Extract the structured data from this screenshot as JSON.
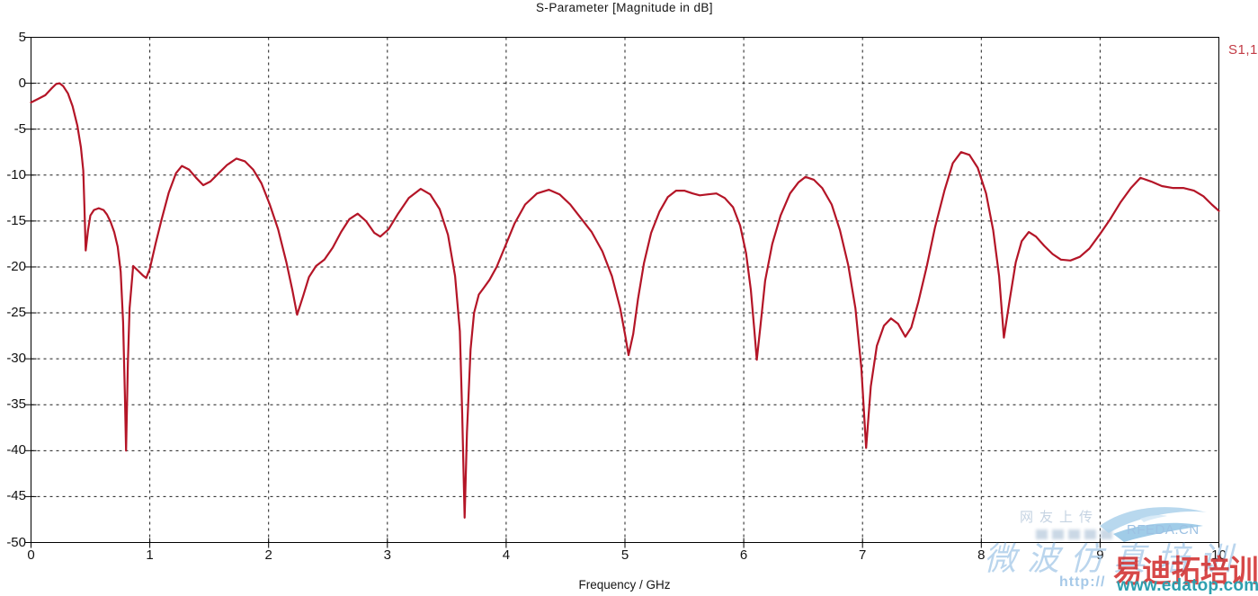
{
  "title": "S-Parameter [Magnitude in dB]",
  "legend": {
    "label": "S1,1",
    "color": "#c23a44"
  },
  "axes": {
    "x": {
      "label": "Frequency / GHz",
      "min": 0,
      "max": 10,
      "ticks": [
        0,
        1,
        2,
        3,
        4,
        5,
        6,
        7,
        8,
        9,
        10
      ]
    },
    "y": {
      "min": -50,
      "max": 5,
      "ticks": [
        5,
        0,
        -5,
        -10,
        -15,
        -20,
        -25,
        -30,
        -35,
        -40,
        -45,
        -50
      ]
    }
  },
  "chart_data": {
    "type": "line",
    "title": "S-Parameter [Magnitude in dB]",
    "xlabel": "Frequency / GHz",
    "ylabel": "",
    "xlim": [
      0,
      10
    ],
    "ylim": [
      -50,
      5
    ],
    "grid": true,
    "grid_style": "dashed",
    "legend_position": "top-right-outside",
    "series": [
      {
        "name": "S1,1",
        "color": "#b41527",
        "points": [
          [
            0.0,
            -2.1
          ],
          [
            0.06,
            -1.7
          ],
          [
            0.12,
            -1.3
          ],
          [
            0.17,
            -0.6
          ],
          [
            0.21,
            -0.1
          ],
          [
            0.24,
            0.0
          ],
          [
            0.27,
            -0.3
          ],
          [
            0.31,
            -1.1
          ],
          [
            0.35,
            -2.5
          ],
          [
            0.39,
            -4.6
          ],
          [
            0.42,
            -7.0
          ],
          [
            0.44,
            -9.5
          ],
          [
            0.45,
            -13.5
          ],
          [
            0.46,
            -18.2
          ],
          [
            0.48,
            -16.0
          ],
          [
            0.5,
            -14.4
          ],
          [
            0.53,
            -13.8
          ],
          [
            0.57,
            -13.6
          ],
          [
            0.61,
            -13.8
          ],
          [
            0.64,
            -14.3
          ],
          [
            0.67,
            -15.1
          ],
          [
            0.7,
            -16.2
          ],
          [
            0.73,
            -17.8
          ],
          [
            0.755,
            -20.5
          ],
          [
            0.775,
            -26.0
          ],
          [
            0.79,
            -34.0
          ],
          [
            0.8,
            -40.0
          ],
          [
            0.815,
            -30.5
          ],
          [
            0.83,
            -24.5
          ],
          [
            0.86,
            -19.9
          ],
          [
            0.9,
            -20.4
          ],
          [
            0.94,
            -20.9
          ],
          [
            0.97,
            -21.2
          ],
          [
            1.0,
            -20.2
          ],
          [
            1.05,
            -17.4
          ],
          [
            1.1,
            -14.8
          ],
          [
            1.16,
            -11.9
          ],
          [
            1.22,
            -9.8
          ],
          [
            1.27,
            -9.0
          ],
          [
            1.33,
            -9.4
          ],
          [
            1.39,
            -10.3
          ],
          [
            1.45,
            -11.1
          ],
          [
            1.51,
            -10.7
          ],
          [
            1.58,
            -9.8
          ],
          [
            1.65,
            -8.9
          ],
          [
            1.73,
            -8.2
          ],
          [
            1.8,
            -8.5
          ],
          [
            1.87,
            -9.4
          ],
          [
            1.94,
            -10.9
          ],
          [
            2.01,
            -13.2
          ],
          [
            2.08,
            -15.9
          ],
          [
            2.15,
            -19.5
          ],
          [
            2.2,
            -22.5
          ],
          [
            2.24,
            -25.2
          ],
          [
            2.29,
            -23.2
          ],
          [
            2.34,
            -21.1
          ],
          [
            2.4,
            -19.9
          ],
          [
            2.47,
            -19.2
          ],
          [
            2.54,
            -17.9
          ],
          [
            2.61,
            -16.2
          ],
          [
            2.68,
            -14.8
          ],
          [
            2.75,
            -14.2
          ],
          [
            2.82,
            -15.0
          ],
          [
            2.89,
            -16.3
          ],
          [
            2.94,
            -16.7
          ],
          [
            3.01,
            -15.9
          ],
          [
            3.09,
            -14.2
          ],
          [
            3.18,
            -12.5
          ],
          [
            3.28,
            -11.5
          ],
          [
            3.36,
            -12.1
          ],
          [
            3.44,
            -13.7
          ],
          [
            3.51,
            -16.5
          ],
          [
            3.57,
            -21.0
          ],
          [
            3.61,
            -27.0
          ],
          [
            3.63,
            -36.0
          ],
          [
            3.65,
            -47.3
          ],
          [
            3.67,
            -38.0
          ],
          [
            3.7,
            -29.0
          ],
          [
            3.73,
            -25.0
          ],
          [
            3.77,
            -23.0
          ],
          [
            3.81,
            -22.3
          ],
          [
            3.86,
            -21.4
          ],
          [
            3.92,
            -20.0
          ],
          [
            3.99,
            -17.8
          ],
          [
            4.07,
            -15.3
          ],
          [
            4.16,
            -13.2
          ],
          [
            4.26,
            -12.0
          ],
          [
            4.36,
            -11.6
          ],
          [
            4.45,
            -12.1
          ],
          [
            4.54,
            -13.2
          ],
          [
            4.63,
            -14.7
          ],
          [
            4.72,
            -16.2
          ],
          [
            4.81,
            -18.3
          ],
          [
            4.89,
            -21.0
          ],
          [
            4.96,
            -24.5
          ],
          [
            5.0,
            -27.3
          ],
          [
            5.03,
            -29.6
          ],
          [
            5.07,
            -27.3
          ],
          [
            5.11,
            -23.5
          ],
          [
            5.16,
            -19.6
          ],
          [
            5.22,
            -16.3
          ],
          [
            5.29,
            -14.0
          ],
          [
            5.36,
            -12.4
          ],
          [
            5.43,
            -11.7
          ],
          [
            5.5,
            -11.7
          ],
          [
            5.57,
            -12.0
          ],
          [
            5.63,
            -12.2
          ],
          [
            5.7,
            -12.1
          ],
          [
            5.77,
            -12.0
          ],
          [
            5.84,
            -12.5
          ],
          [
            5.91,
            -13.5
          ],
          [
            5.97,
            -15.5
          ],
          [
            6.02,
            -18.5
          ],
          [
            6.06,
            -22.5
          ],
          [
            6.09,
            -27.0
          ],
          [
            6.11,
            -30.1
          ],
          [
            6.14,
            -26.5
          ],
          [
            6.18,
            -21.5
          ],
          [
            6.24,
            -17.5
          ],
          [
            6.31,
            -14.4
          ],
          [
            6.39,
            -12.0
          ],
          [
            6.46,
            -10.8
          ],
          [
            6.52,
            -10.2
          ],
          [
            6.59,
            -10.5
          ],
          [
            6.66,
            -11.4
          ],
          [
            6.74,
            -13.2
          ],
          [
            6.81,
            -16.0
          ],
          [
            6.88,
            -19.8
          ],
          [
            6.94,
            -24.5
          ],
          [
            6.99,
            -31.0
          ],
          [
            7.03,
            -39.7
          ],
          [
            7.07,
            -33.0
          ],
          [
            7.12,
            -28.6
          ],
          [
            7.18,
            -26.4
          ],
          [
            7.24,
            -25.6
          ],
          [
            7.3,
            -26.2
          ],
          [
            7.36,
            -27.6
          ],
          [
            7.41,
            -26.6
          ],
          [
            7.47,
            -23.8
          ],
          [
            7.54,
            -20.0
          ],
          [
            7.61,
            -15.7
          ],
          [
            7.69,
            -11.7
          ],
          [
            7.76,
            -8.7
          ],
          [
            7.83,
            -7.5
          ],
          [
            7.9,
            -7.8
          ],
          [
            7.97,
            -9.2
          ],
          [
            8.04,
            -12.0
          ],
          [
            8.1,
            -16.0
          ],
          [
            8.15,
            -21.0
          ],
          [
            8.19,
            -27.7
          ],
          [
            8.24,
            -23.5
          ],
          [
            8.29,
            -19.5
          ],
          [
            8.34,
            -17.2
          ],
          [
            8.4,
            -16.2
          ],
          [
            8.46,
            -16.7
          ],
          [
            8.53,
            -17.7
          ],
          [
            8.6,
            -18.6
          ],
          [
            8.67,
            -19.2
          ],
          [
            8.75,
            -19.3
          ],
          [
            8.83,
            -18.9
          ],
          [
            8.91,
            -18.0
          ],
          [
            9.0,
            -16.4
          ],
          [
            9.08,
            -14.9
          ],
          [
            9.17,
            -13.0
          ],
          [
            9.26,
            -11.4
          ],
          [
            9.34,
            -10.3
          ],
          [
            9.43,
            -10.7
          ],
          [
            9.52,
            -11.2
          ],
          [
            9.61,
            -11.4
          ],
          [
            9.7,
            -11.4
          ],
          [
            9.79,
            -11.7
          ],
          [
            9.87,
            -12.3
          ],
          [
            9.94,
            -13.2
          ],
          [
            10.0,
            -13.9
          ]
        ]
      }
    ]
  },
  "watermarks": {
    "faint_text": "网友上传",
    "rfeda": "RFEDA.CN",
    "script_text": "微波仿真培训",
    "http_text": "http://",
    "brand_cn": "易迪拓培训",
    "brand_url": "www.edatop.com",
    "colors": {
      "pale_blue": "#a9cbe9",
      "red": "#ce2020",
      "teal": "#2da0b0"
    }
  }
}
